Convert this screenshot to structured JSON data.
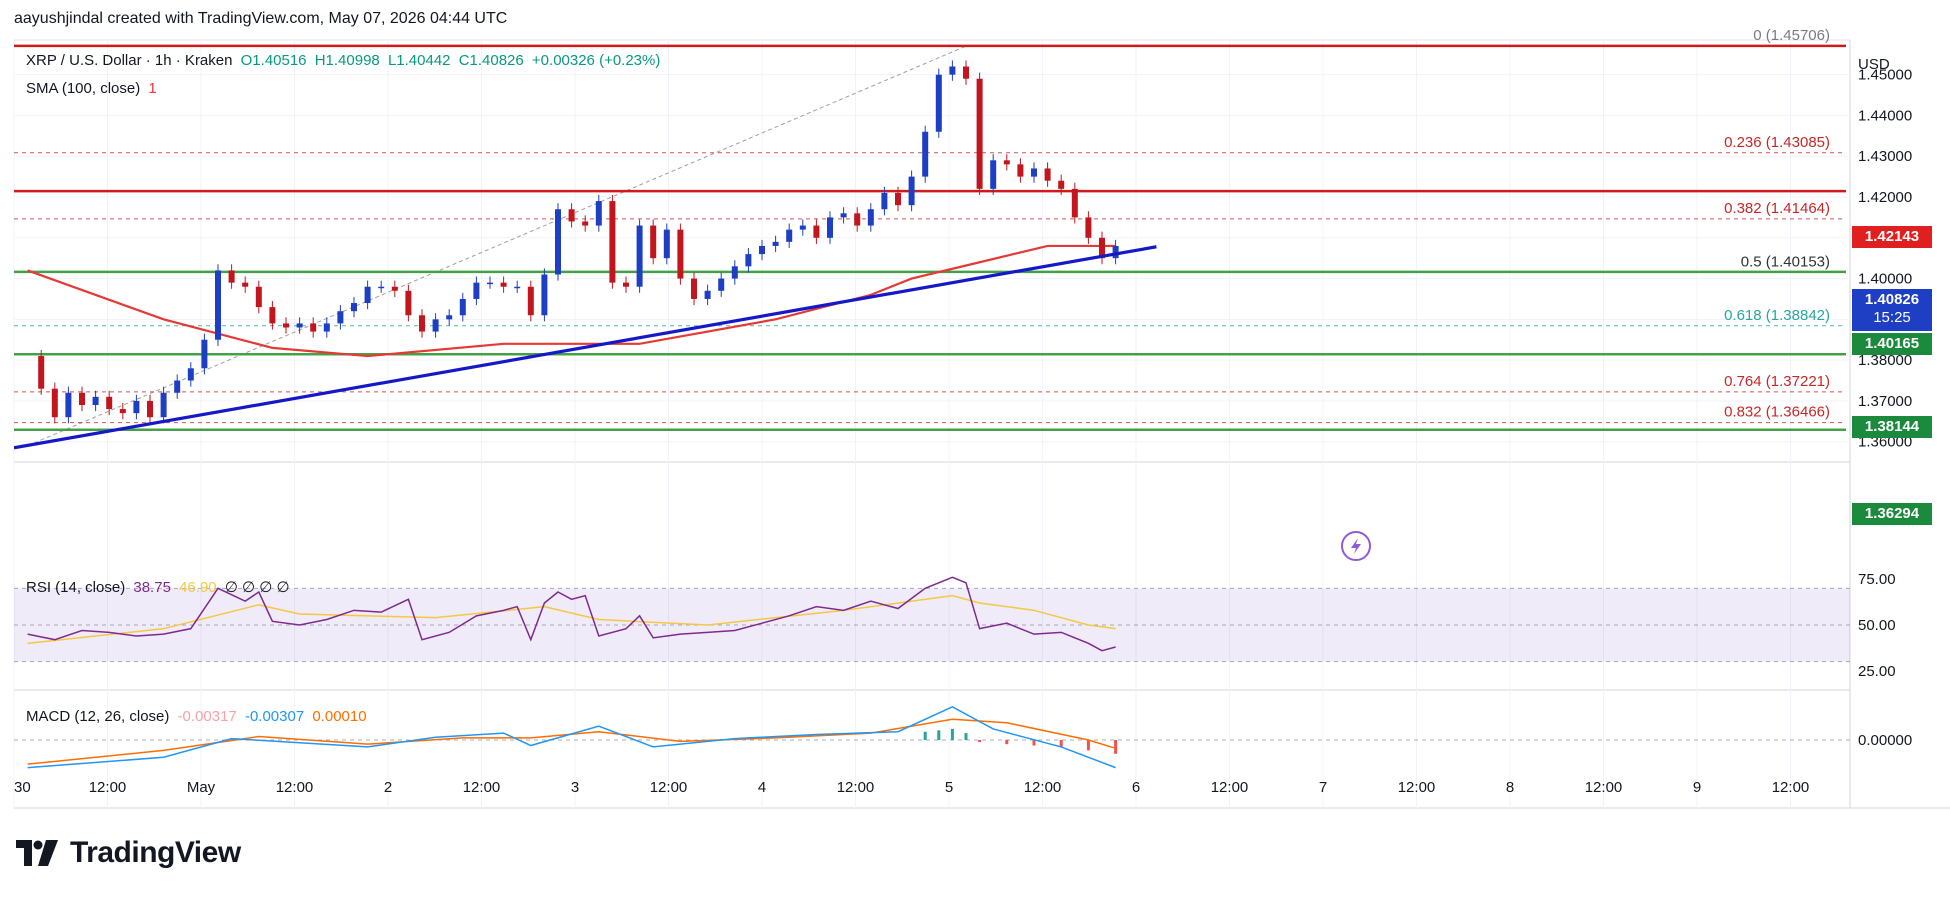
{
  "header": {
    "attribution": "aayushjindal created with TradingView.com, May 07, 2026 04:44 UTC",
    "currency": "USD",
    "brand": "TradingView"
  },
  "legend": {
    "symbol": "XRP / U.S. Dollar · 1h · Kraken",
    "open": "O1.40516",
    "high": "H1.40998",
    "low": "L1.40442",
    "close": "C1.40826",
    "change": "+0.00326 (+0.23%)",
    "sma_label": "SMA (100, close)",
    "sma_value": "1",
    "rsi_label": "RSI (14, close)",
    "rsi_value": "38.75",
    "rsi_ma": "46.90",
    "rsi_extra": "∅ ∅ ∅ ∅",
    "macd_label": "MACD (12, 26, close)",
    "macd_hist": "-0.00317",
    "macd_line": "-0.00307",
    "macd_signal": "0.00010"
  },
  "price_tags": {
    "current": "1.40826",
    "countdown": "15:25",
    "red_level": "1.42143",
    "green_1": "1.40165",
    "green_2": "1.38144",
    "green_3": "1.36294"
  },
  "colors": {
    "up": "#089981",
    "down": "#f23645",
    "candle_up": "#1e3fc4",
    "candle_down": "#c2161e",
    "sma": "#e53935",
    "trend": "#1518c8",
    "support": "#43a047",
    "resistance": "#d01a1a",
    "rsi": "#7e2a8f",
    "rsi_ma": "#f5c842",
    "macd": "#2196f3",
    "macd_signal": "#ff6d00"
  },
  "chart_data": {
    "type": "line",
    "title": "XRP / U.S. Dollar · 1h · Kraken",
    "ylim": [
      1.356,
      1.4585
    ],
    "y_ticks": [
      "1.36000",
      "1.37000",
      "1.38000",
      "1.39000",
      "1.40000",
      "1.41000",
      "1.42000",
      "1.43000",
      "1.44000",
      "1.45000"
    ],
    "x_tick_labels": [
      "30",
      "12:00",
      "May",
      "12:00",
      "2",
      "12:00",
      "3",
      "12:00",
      "4",
      "12:00",
      "5",
      "12:00",
      "6",
      "12:00",
      "7",
      "12:00",
      "8",
      "12:00",
      "9",
      "12:00"
    ],
    "price_path": [
      [
        0,
        1.381
      ],
      [
        1,
        1.373
      ],
      [
        2,
        1.366
      ],
      [
        3,
        1.372
      ],
      [
        4,
        1.369
      ],
      [
        5,
        1.371
      ],
      [
        6,
        1.368
      ],
      [
        7,
        1.367
      ],
      [
        8,
        1.37
      ],
      [
        9,
        1.366
      ],
      [
        10,
        1.372
      ],
      [
        11,
        1.375
      ],
      [
        12,
        1.378
      ],
      [
        13,
        1.385
      ],
      [
        14,
        1.402
      ],
      [
        15,
        1.399
      ],
      [
        16,
        1.398
      ],
      [
        17,
        1.393
      ],
      [
        18,
        1.389
      ],
      [
        19,
        1.388
      ],
      [
        20,
        1.389
      ],
      [
        21,
        1.387
      ],
      [
        22,
        1.389
      ],
      [
        23,
        1.392
      ],
      [
        24,
        1.394
      ],
      [
        25,
        1.398
      ],
      [
        26,
        1.398
      ],
      [
        27,
        1.397
      ],
      [
        28,
        1.391
      ],
      [
        29,
        1.387
      ],
      [
        30,
        1.39
      ],
      [
        31,
        1.391
      ],
      [
        32,
        1.395
      ],
      [
        33,
        1.399
      ],
      [
        34,
        1.399
      ],
      [
        35,
        1.398
      ],
      [
        36,
        1.398
      ],
      [
        37,
        1.391
      ],
      [
        38,
        1.401
      ],
      [
        39,
        1.417
      ],
      [
        40,
        1.414
      ],
      [
        41,
        1.413
      ],
      [
        42,
        1.419
      ],
      [
        43,
        1.399
      ],
      [
        44,
        1.398
      ],
      [
        45,
        1.413
      ],
      [
        46,
        1.405
      ],
      [
        47,
        1.412
      ],
      [
        48,
        1.4
      ],
      [
        49,
        1.395
      ],
      [
        50,
        1.397
      ],
      [
        51,
        1.4
      ],
      [
        52,
        1.403
      ],
      [
        53,
        1.406
      ],
      [
        54,
        1.408
      ],
      [
        55,
        1.409
      ],
      [
        56,
        1.412
      ],
      [
        57,
        1.413
      ],
      [
        58,
        1.41
      ],
      [
        59,
        1.415
      ],
      [
        60,
        1.416
      ],
      [
        61,
        1.413
      ],
      [
        62,
        1.417
      ],
      [
        63,
        1.421
      ],
      [
        64,
        1.418
      ],
      [
        65,
        1.425
      ],
      [
        66,
        1.436
      ],
      [
        67,
        1.45
      ],
      [
        68,
        1.452
      ],
      [
        69,
        1.449
      ],
      [
        70,
        1.422
      ],
      [
        71,
        1.429
      ],
      [
        72,
        1.428
      ],
      [
        73,
        1.425
      ],
      [
        74,
        1.427
      ],
      [
        75,
        1.424
      ],
      [
        76,
        1.422
      ],
      [
        77,
        1.415
      ],
      [
        78,
        1.41
      ],
      [
        79,
        1.405
      ],
      [
        80,
        1.408
      ]
    ],
    "sma_100": [
      [
        0,
        1.402
      ],
      [
        10,
        1.39
      ],
      [
        18,
        1.383
      ],
      [
        25,
        1.381
      ],
      [
        35,
        1.384
      ],
      [
        45,
        1.384
      ],
      [
        55,
        1.39
      ],
      [
        62,
        1.396
      ],
      [
        65,
        1.4
      ],
      [
        70,
        1.404
      ],
      [
        75,
        1.408
      ],
      [
        80,
        1.408
      ]
    ],
    "fibonacci": [
      {
        "level": "0",
        "value": 1.45706
      },
      {
        "level": "0.236",
        "value": 1.43085
      },
      {
        "level": "0.382",
        "value": 1.41464
      },
      {
        "level": "0.5",
        "value": 1.40153
      },
      {
        "level": "0.618",
        "value": 1.38842
      },
      {
        "level": "0.764",
        "value": 1.37221
      },
      {
        "level": "0.832",
        "value": 1.36466
      }
    ],
    "fib_labels": [
      "0 (1.45706)",
      "0.236 (1.43085)",
      "0.382 (1.41464)",
      "0.5 (1.40153)",
      "0.618 (1.38842)",
      "0.764 (1.37221)",
      "0.832 (1.36466)"
    ],
    "horizontal_levels": [
      {
        "value": 1.45706,
        "kind": "resistance"
      },
      {
        "value": 1.42143,
        "kind": "resistance"
      },
      {
        "value": 1.40165,
        "kind": "support"
      },
      {
        "value": 1.38144,
        "kind": "support"
      },
      {
        "value": 1.36294,
        "kind": "support"
      }
    ],
    "trend_line": [
      [
        -1,
        1.3585
      ],
      [
        83,
        1.4078
      ]
    ],
    "fib_diagonal": [
      [
        0,
        1.359
      ],
      [
        69,
        1.457
      ]
    ],
    "rsi": {
      "ylim": [
        20,
        80
      ],
      "ticks": [
        "25.00",
        "50.00",
        "75.00"
      ],
      "band": [
        30,
        70
      ],
      "values": [
        [
          0,
          45
        ],
        [
          2,
          42
        ],
        [
          4,
          47
        ],
        [
          6,
          46
        ],
        [
          8,
          44
        ],
        [
          10,
          45
        ],
        [
          12,
          48
        ],
        [
          14,
          70
        ],
        [
          16,
          63
        ],
        [
          17,
          68
        ],
        [
          18,
          52
        ],
        [
          20,
          50
        ],
        [
          22,
          53
        ],
        [
          24,
          58
        ],
        [
          26,
          57
        ],
        [
          28,
          64
        ],
        [
          29,
          42
        ],
        [
          31,
          46
        ],
        [
          33,
          55
        ],
        [
          35,
          58
        ],
        [
          36,
          60
        ],
        [
          37,
          42
        ],
        [
          38,
          62
        ],
        [
          39,
          68
        ],
        [
          40,
          64
        ],
        [
          41,
          66
        ],
        [
          42,
          44
        ],
        [
          44,
          48
        ],
        [
          45,
          55
        ],
        [
          46,
          43
        ],
        [
          48,
          45
        ],
        [
          50,
          46
        ],
        [
          52,
          47
        ],
        [
          54,
          51
        ],
        [
          56,
          55
        ],
        [
          58,
          60
        ],
        [
          60,
          58
        ],
        [
          62,
          63
        ],
        [
          64,
          59
        ],
        [
          66,
          70
        ],
        [
          68,
          76
        ],
        [
          69,
          73
        ],
        [
          70,
          48
        ],
        [
          72,
          51
        ],
        [
          74,
          45
        ],
        [
          76,
          46
        ],
        [
          78,
          40
        ],
        [
          79,
          36
        ],
        [
          80,
          38
        ]
      ],
      "ma_values": [
        [
          0,
          40
        ],
        [
          10,
          48
        ],
        [
          17,
          61
        ],
        [
          20,
          56
        ],
        [
          30,
          54
        ],
        [
          38,
          60
        ],
        [
          42,
          53
        ],
        [
          50,
          50
        ],
        [
          60,
          58
        ],
        [
          68,
          66
        ],
        [
          70,
          62
        ],
        [
          74,
          58
        ],
        [
          78,
          50
        ],
        [
          80,
          48
        ]
      ]
    },
    "macd": {
      "ylim": [
        -0.0055,
        0.0055
      ],
      "ticks": [
        "0.00000"
      ],
      "line": [
        [
          0,
          -0.004
        ],
        [
          10,
          -0.0025
        ],
        [
          15,
          0.0002
        ],
        [
          20,
          -0.0004
        ],
        [
          25,
          -0.001
        ],
        [
          30,
          0.0004
        ],
        [
          35,
          0.001
        ],
        [
          37,
          -0.0008
        ],
        [
          42,
          0.002
        ],
        [
          46,
          -0.001
        ],
        [
          52,
          0.0002
        ],
        [
          58,
          0.0008
        ],
        [
          64,
          0.0012
        ],
        [
          68,
          0.0048
        ],
        [
          71,
          0.0016
        ],
        [
          76,
          -0.001
        ],
        [
          80,
          -0.004
        ]
      ],
      "signal": [
        [
          0,
          -0.0035
        ],
        [
          10,
          -0.0015
        ],
        [
          17,
          0.0005
        ],
        [
          25,
          -0.0006
        ],
        [
          32,
          0.0003
        ],
        [
          37,
          0.0003
        ],
        [
          42,
          0.0012
        ],
        [
          48,
          -0.0002
        ],
        [
          55,
          0.0003
        ],
        [
          62,
          0.001
        ],
        [
          68,
          0.003
        ],
        [
          72,
          0.0025
        ],
        [
          78,
          0.0
        ],
        [
          80,
          -0.0012
        ]
      ],
      "histogram": [
        [
          66,
          0.0012
        ],
        [
          67,
          0.0014
        ],
        [
          68,
          0.0016
        ],
        [
          69,
          0.001
        ],
        [
          70,
          -0.0003
        ],
        [
          72,
          -0.0006
        ],
        [
          74,
          -0.0008
        ],
        [
          76,
          -0.001
        ],
        [
          78,
          -0.0015
        ],
        [
          80,
          -0.002
        ]
      ]
    }
  }
}
